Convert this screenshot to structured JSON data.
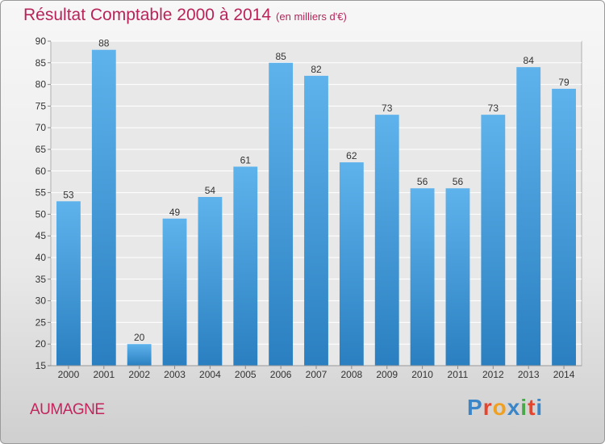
{
  "chart_data": {
    "type": "bar",
    "title": "Résultat Comptable 2000 à 2014",
    "subtitle": "(en milliers d'€)",
    "categories": [
      "2000",
      "2001",
      "2002",
      "2003",
      "2004",
      "2005",
      "2006",
      "2007",
      "2008",
      "2009",
      "2010",
      "2011",
      "2012",
      "2013",
      "2014"
    ],
    "values": [
      53,
      88,
      20,
      49,
      54,
      61,
      85,
      82,
      62,
      73,
      56,
      56,
      73,
      84,
      79
    ],
    "ylim": [
      15,
      90
    ],
    "yticks": [
      15,
      20,
      25,
      30,
      35,
      40,
      45,
      50,
      55,
      60,
      65,
      70,
      75,
      80,
      85,
      90
    ],
    "grid": true,
    "bar_color_top": "#5fb3ec",
    "bar_color_bottom": "#2a7fc0"
  },
  "place_name": "AUMAGNE",
  "logo": {
    "letters": [
      "P",
      "r",
      "o",
      "x",
      "i",
      "t",
      "i"
    ],
    "colors": [
      "#3a86c8",
      "#e8442c",
      "#f0a020",
      "#3a86c8",
      "#4aa84a",
      "#e8442c",
      "#3a86c8"
    ]
  }
}
